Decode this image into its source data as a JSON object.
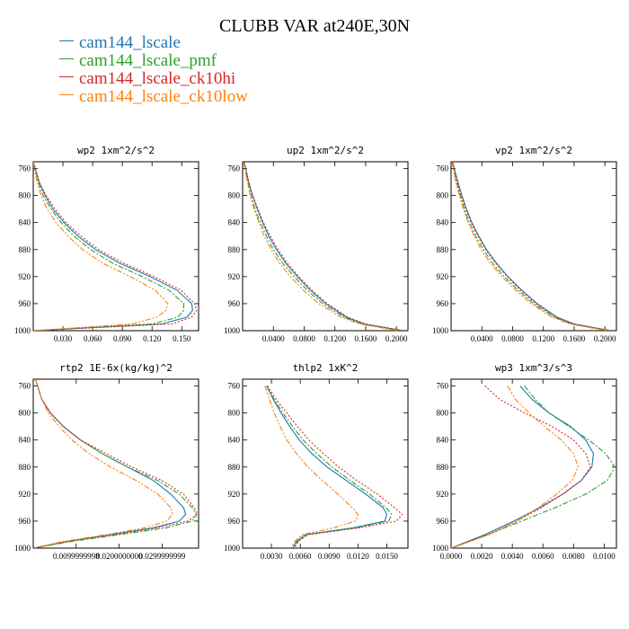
{
  "title": "CLUBB VAR at240E,30N",
  "legend": [
    {
      "label": "cam144_lscale",
      "color": "#1f77b4"
    },
    {
      "label": "cam144_lscale_pmf",
      "color": "#2ca02c"
    },
    {
      "label": "cam144_lscale_ck10hi",
      "color": "#d62728"
    },
    {
      "label": "cam144_lscale_ck10low",
      "color": "#ff7f0e"
    }
  ],
  "chart_data": [
    {
      "type": "line",
      "title": "wp2  1xm^2/s^2",
      "xlim": [
        0,
        0.167
      ],
      "ylim": [
        750,
        1000
      ],
      "xticks": [
        "0.030",
        "0.060",
        "0.090",
        "0.120",
        "0.150"
      ],
      "xtick_values": [
        0.03,
        0.06,
        0.09,
        0.12,
        0.15
      ],
      "yticks": [
        760,
        800,
        840,
        880,
        920,
        960,
        1000
      ],
      "y": [
        750,
        760,
        780,
        800,
        820,
        840,
        860,
        880,
        900,
        920,
        940,
        960,
        970,
        980,
        990,
        1000
      ],
      "series": [
        {
          "values": [
            0,
            0.002,
            0.006,
            0.012,
            0.02,
            0.031,
            0.045,
            0.063,
            0.087,
            0.118,
            0.145,
            0.16,
            0.161,
            0.155,
            0.13,
            0.0
          ]
        },
        {
          "values": [
            0,
            0.002,
            0.005,
            0.01,
            0.018,
            0.028,
            0.041,
            0.058,
            0.08,
            0.11,
            0.137,
            0.152,
            0.152,
            0.146,
            0.12,
            0.0
          ]
        },
        {
          "values": [
            0,
            0.002,
            0.006,
            0.013,
            0.022,
            0.033,
            0.048,
            0.066,
            0.091,
            0.122,
            0.149,
            0.163,
            0.165,
            0.16,
            0.14,
            0.0
          ]
        },
        {
          "values": [
            0,
            0.001,
            0.004,
            0.008,
            0.014,
            0.023,
            0.035,
            0.05,
            0.07,
            0.098,
            0.123,
            0.136,
            0.134,
            0.125,
            0.1,
            0.0
          ]
        }
      ]
    },
    {
      "type": "line",
      "title": "up2  1xm^2/s^2",
      "xlim": [
        0,
        0.215
      ],
      "ylim": [
        750,
        1000
      ],
      "xticks": [
        "0.0400",
        "0.0800",
        "0.1200",
        "0.1600",
        "0.2000"
      ],
      "xtick_values": [
        0.04,
        0.08,
        0.12,
        0.16,
        0.2
      ],
      "yticks": [
        760,
        800,
        840,
        880,
        920,
        960,
        1000
      ],
      "y": [
        750,
        760,
        780,
        800,
        820,
        840,
        860,
        880,
        900,
        920,
        940,
        960,
        980,
        990,
        1000
      ],
      "series": [
        {
          "values": [
            0.002,
            0.004,
            0.008,
            0.013,
            0.019,
            0.026,
            0.034,
            0.044,
            0.056,
            0.071,
            0.088,
            0.108,
            0.135,
            0.158,
            0.208
          ]
        },
        {
          "values": [
            0.002,
            0.003,
            0.007,
            0.011,
            0.016,
            0.023,
            0.031,
            0.04,
            0.052,
            0.067,
            0.084,
            0.104,
            0.132,
            0.155,
            0.205
          ]
        },
        {
          "values": [
            0.002,
            0.004,
            0.008,
            0.013,
            0.02,
            0.027,
            0.036,
            0.046,
            0.058,
            0.073,
            0.09,
            0.11,
            0.137,
            0.16,
            0.21
          ]
        },
        {
          "values": [
            0.001,
            0.003,
            0.006,
            0.01,
            0.015,
            0.021,
            0.028,
            0.037,
            0.048,
            0.062,
            0.079,
            0.099,
            0.128,
            0.152,
            0.202
          ]
        }
      ]
    },
    {
      "type": "line",
      "title": "vp2  1xm^2/s^2",
      "xlim": [
        0,
        0.215
      ],
      "ylim": [
        750,
        1000
      ],
      "xticks": [
        "0.0400",
        "0.0800",
        "0.1200",
        "0.1600",
        "0.2000"
      ],
      "xtick_values": [
        0.04,
        0.08,
        0.12,
        0.16,
        0.2
      ],
      "yticks": [
        760,
        800,
        840,
        880,
        920,
        960,
        1000
      ],
      "y": [
        750,
        760,
        780,
        800,
        820,
        840,
        860,
        880,
        900,
        920,
        940,
        960,
        980,
        990,
        1000
      ],
      "series": [
        {
          "values": [
            0.002,
            0.004,
            0.009,
            0.014,
            0.02,
            0.027,
            0.036,
            0.046,
            0.059,
            0.074,
            0.092,
            0.112,
            0.138,
            0.16,
            0.208
          ]
        },
        {
          "values": [
            0.002,
            0.003,
            0.007,
            0.012,
            0.017,
            0.024,
            0.032,
            0.042,
            0.054,
            0.069,
            0.087,
            0.107,
            0.134,
            0.157,
            0.205
          ]
        },
        {
          "values": [
            0.002,
            0.004,
            0.008,
            0.013,
            0.019,
            0.026,
            0.035,
            0.045,
            0.058,
            0.073,
            0.09,
            0.11,
            0.136,
            0.159,
            0.207
          ]
        },
        {
          "values": [
            0.001,
            0.003,
            0.006,
            0.011,
            0.016,
            0.022,
            0.03,
            0.039,
            0.051,
            0.066,
            0.084,
            0.104,
            0.131,
            0.154,
            0.203
          ]
        }
      ]
    },
    {
      "type": "line",
      "title": "rtp2  1E-6x(kg/kg)^2",
      "xlim": [
        0,
        0.0385
      ],
      "ylim": [
        750,
        1000
      ],
      "xticks": [
        "0.0099999998",
        "0.0200000000",
        "0.0299999999"
      ],
      "xtick_values": [
        0.01,
        0.02,
        0.03
      ],
      "yticks": [
        760,
        800,
        840,
        880,
        920,
        960,
        1000
      ],
      "y": [
        750,
        760,
        780,
        800,
        820,
        840,
        860,
        880,
        900,
        920,
        940,
        950,
        960,
        970,
        980,
        990,
        1000
      ],
      "series": [
        {
          "values": [
            0.0005,
            0.001,
            0.002,
            0.004,
            0.007,
            0.011,
            0.016,
            0.022,
            0.028,
            0.032,
            0.035,
            0.0355,
            0.034,
            0.028,
            0.018,
            0.008,
            0.0
          ]
        },
        {
          "values": [
            0.0005,
            0.001,
            0.002,
            0.004,
            0.007,
            0.011,
            0.016,
            0.022,
            0.029,
            0.034,
            0.037,
            0.038,
            0.037,
            0.031,
            0.02,
            0.009,
            0.0
          ]
        },
        {
          "values": [
            0.0005,
            0.001,
            0.002,
            0.004,
            0.007,
            0.011,
            0.017,
            0.023,
            0.03,
            0.035,
            0.0375,
            0.0382,
            0.036,
            0.029,
            0.019,
            0.008,
            0.0
          ]
        },
        {
          "values": [
            0.0005,
            0.001,
            0.002,
            0.0035,
            0.006,
            0.009,
            0.013,
            0.018,
            0.024,
            0.029,
            0.032,
            0.0325,
            0.031,
            0.026,
            0.017,
            0.007,
            0.0
          ]
        }
      ]
    },
    {
      "type": "line",
      "title": "thlp2  1xK^2",
      "xlim": [
        0,
        0.0172
      ],
      "ylim": [
        750,
        1000
      ],
      "xticks": [
        "0.0030",
        "0.0060",
        "0.0090",
        "0.0120",
        "0.0150"
      ],
      "xtick_values": [
        0.003,
        0.006,
        0.009,
        0.012,
        0.015
      ],
      "yticks": [
        760,
        800,
        840,
        880,
        920,
        960,
        1000
      ],
      "y": [
        760,
        780,
        800,
        820,
        840,
        860,
        880,
        900,
        920,
        940,
        950,
        960,
        970,
        980,
        990,
        1000
      ],
      "series": [
        {
          "values": [
            0.0025,
            0.0032,
            0.004,
            0.0049,
            0.0059,
            0.0072,
            0.0088,
            0.0108,
            0.0128,
            0.0146,
            0.015,
            0.0148,
            0.0115,
            0.0065,
            0.0056,
            0.0052
          ]
        },
        {
          "values": [
            0.0025,
            0.0033,
            0.0042,
            0.0052,
            0.0063,
            0.0077,
            0.0093,
            0.0112,
            0.0132,
            0.0149,
            0.0155,
            0.0152,
            0.0118,
            0.0067,
            0.0057,
            0.0053
          ]
        },
        {
          "values": [
            0.0026,
            0.0035,
            0.0046,
            0.0057,
            0.0069,
            0.0084,
            0.01,
            0.0119,
            0.014,
            0.0158,
            0.0166,
            0.016,
            0.0122,
            0.0068,
            0.0058,
            0.0054
          ]
        },
        {
          "values": [
            0.0023,
            0.0028,
            0.0033,
            0.0039,
            0.0046,
            0.0056,
            0.0068,
            0.0083,
            0.0099,
            0.0114,
            0.012,
            0.0118,
            0.0095,
            0.0062,
            0.0054,
            0.005
          ]
        }
      ]
    },
    {
      "type": "line",
      "title": "wp3  1xm^3/s^3",
      "xlim": [
        0,
        0.0108
      ],
      "ylim": [
        750,
        1000
      ],
      "xticks": [
        "0.0000",
        "0.0020",
        "0.0040",
        "0.0060",
        "0.0080",
        "0.0100"
      ],
      "xtick_values": [
        0,
        0.002,
        0.004,
        0.006,
        0.008,
        0.01
      ],
      "yticks": [
        760,
        800,
        840,
        880,
        920,
        960,
        1000
      ],
      "y": [
        760,
        780,
        800,
        820,
        840,
        860,
        880,
        900,
        920,
        940,
        960,
        980,
        1000
      ],
      "series": [
        {
          "values": [
            0.0045,
            0.0053,
            0.0064,
            0.0078,
            0.0088,
            0.0093,
            0.0092,
            0.0085,
            0.0073,
            0.0058,
            0.0041,
            0.0022,
            0.0
          ]
        },
        {
          "values": [
            0.0048,
            0.0055,
            0.0064,
            0.0077,
            0.009,
            0.0101,
            0.0107,
            0.0102,
            0.0088,
            0.0068,
            0.0046,
            0.0024,
            0.0
          ]
        },
        {
          "values": [
            0.0022,
            0.0032,
            0.0048,
            0.0066,
            0.008,
            0.0088,
            0.0091,
            0.0085,
            0.0073,
            0.0059,
            0.0043,
            0.0024,
            0.0
          ]
        },
        {
          "values": [
            0.0037,
            0.0042,
            0.0051,
            0.0061,
            0.0072,
            0.008,
            0.0083,
            0.0079,
            0.0069,
            0.0057,
            0.0043,
            0.0025,
            0.0
          ]
        }
      ]
    }
  ]
}
